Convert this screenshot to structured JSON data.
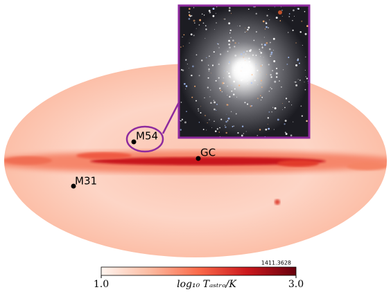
{
  "chart_data": {
    "type": "skymap",
    "annotations": [
      "M54",
      "GC",
      "M31"
    ],
    "colorbar": {
      "label": "log₁₀ Tₐₛₜᵣₒ/K",
      "clim": [
        1.0,
        3.0
      ],
      "ticks": [
        {
          "value": 1.0,
          "label": "1.0"
        },
        {
          "value": 3.0,
          "label": "3.0"
        }
      ],
      "max_label": "1411.3628",
      "colors": [
        "#fff5f0",
        "#fcbba1",
        "#fb6a4a",
        "#cb181d",
        "#67000d"
      ]
    }
  }
}
